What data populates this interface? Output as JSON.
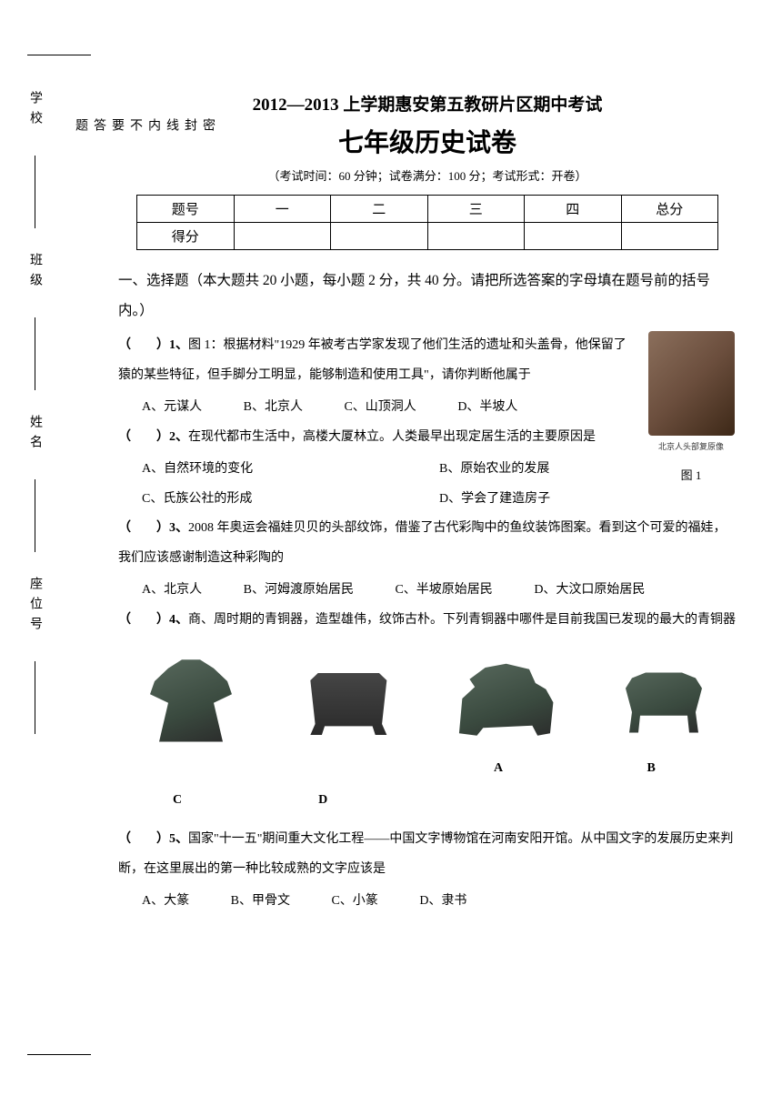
{
  "header": {
    "title": "2012—2013 上学期惠安第五教研片区期中考试",
    "subtitle": "七年级历史试卷",
    "exam_info": "（考试时间：60 分钟；试卷满分：100 分；考试形式：开卷）"
  },
  "score_table": {
    "r1": {
      "c1": "题号",
      "c2": "一",
      "c3": "二",
      "c4": "三",
      "c5": "四",
      "c6": "总分"
    },
    "r2": {
      "c1": "得分",
      "c2": "",
      "c3": "",
      "c4": "",
      "c5": "",
      "c6": ""
    }
  },
  "section1": {
    "title": "一、选择题（本大题共 20 小题，每小题 2 分，共 40 分。请把所选答案的字母填在题号前的括号内。）"
  },
  "q1": {
    "prefix": "（　　）1、",
    "text": "图 1：根据材料\"1929 年被考古学家发现了他们生活的遗址和头盖骨，他保留了猿的某些特征，但手脚分工明显，能够制造和使用工具\"，请你判断他属于",
    "a": "A、元谋人",
    "b": "B、北京人",
    "c": "C、山顶洞人",
    "d": "D、半坡人",
    "fig_caption_tiny": "北京人头部复原像",
    "fig_caption": "图 1"
  },
  "q2": {
    "prefix": "（　　）2、",
    "text": "在现代都市生活中，高楼大厦林立。人类最早出现定居生活的主要原因是",
    "a": "A、自然环境的变化",
    "b": "B、原始农业的发展",
    "c": "C、氏族公社的形成",
    "d": "D、学会了建造房子"
  },
  "q3": {
    "prefix": "（　　）3、",
    "text": "2008 年奥运会福娃贝贝的头部纹饰，借鉴了古代彩陶中的鱼纹装饰图案。看到这个可爱的福娃，我们应该感谢制造这种彩陶的",
    "a": "A、北京人",
    "b": "B、河姆渡原始居民",
    "c": "C、半坡原始居民",
    "d": "D、大汶口原始居民"
  },
  "q4": {
    "prefix": "（　　）4、",
    "text": "商、周时期的青铜器，造型雄伟，纹饰古朴。下列青铜器中哪件是目前我国已发现的最大的青铜器",
    "la": "A",
    "lb": "B",
    "lc": "C",
    "ld": "D"
  },
  "q5": {
    "prefix": "（　　）5、",
    "text": "国家\"十一五\"期间重大文化工程——中国文字博物馆在河南安阳开馆。从中国文字的发展历史来判断，在这里展出的第一种比较成熟的文字应该是",
    "a": "A、大篆",
    "b": "B、甲骨文",
    "c": "C、小篆",
    "d": "D、隶书"
  },
  "margin": {
    "school": "学校",
    "class": "班级",
    "name": "姓名",
    "seat": "座位号",
    "seal": {
      "s1": "密",
      "s2": "封",
      "s3": "线",
      "s4": "内",
      "s5": "不",
      "s6": "要",
      "s7": "答",
      "s8": "题"
    }
  }
}
